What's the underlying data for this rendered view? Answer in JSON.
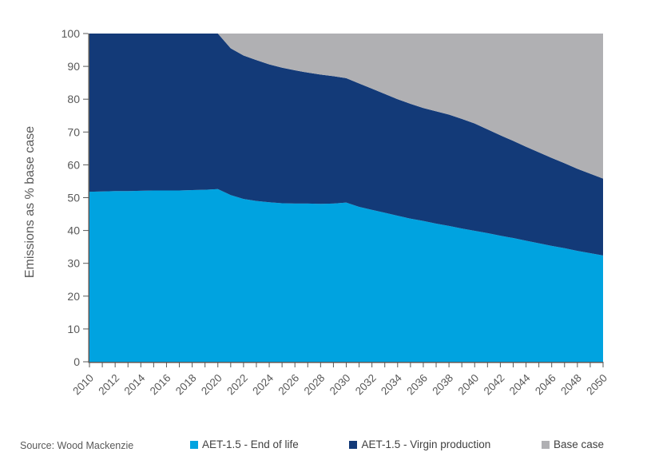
{
  "chart": {
    "source": "Source: Wood Mackenzie"
  },
  "chart_data": {
    "type": "area",
    "stacked": true,
    "title": "",
    "xlabel": "",
    "ylabel": "Emissions as % base case",
    "xlim": [
      2010,
      2050
    ],
    "ylim": [
      0,
      100
    ],
    "grid": false,
    "legend_position": "bottom",
    "background_color": "#FFFFFF",
    "axis_color": "#595959",
    "x": [
      2010,
      2011,
      2012,
      2013,
      2014,
      2015,
      2016,
      2017,
      2018,
      2019,
      2020,
      2021,
      2022,
      2023,
      2024,
      2025,
      2026,
      2027,
      2028,
      2029,
      2030,
      2031,
      2032,
      2033,
      2034,
      2035,
      2036,
      2037,
      2038,
      2039,
      2040,
      2041,
      2042,
      2043,
      2044,
      2045,
      2046,
      2047,
      2048,
      2049,
      2050
    ],
    "x_tick_step_labels": 2,
    "y_ticks": [
      0,
      10,
      20,
      30,
      40,
      50,
      60,
      70,
      80,
      90,
      100
    ],
    "series": [
      {
        "id": "end-of-life",
        "name": "AET-1.5 - End of life",
        "color": "#00A3E0",
        "values": [
          51.8,
          51.9,
          52.0,
          52.0,
          52.1,
          52.2,
          52.2,
          52.2,
          52.3,
          52.4,
          52.6,
          50.8,
          49.6,
          49.0,
          48.6,
          48.3,
          48.2,
          48.2,
          48.1,
          48.2,
          48.5,
          47.2,
          46.3,
          45.4,
          44.5,
          43.6,
          42.9,
          42.1,
          41.4,
          40.6,
          39.9,
          39.2,
          38.4,
          37.7,
          36.9,
          36.1,
          35.3,
          34.6,
          33.8,
          33.1,
          32.4
        ]
      },
      {
        "id": "virgin-production",
        "name": "AET-1.5 - Virgin production",
        "color": "#133A78",
        "values": [
          48.2,
          48.1,
          48.0,
          48.0,
          47.9,
          47.8,
          47.8,
          47.8,
          47.7,
          47.6,
          47.4,
          44.7,
          43.7,
          42.9,
          42.0,
          41.3,
          40.6,
          39.9,
          39.4,
          38.8,
          37.9,
          37.6,
          36.9,
          36.2,
          35.5,
          35.0,
          34.4,
          34.2,
          33.9,
          33.4,
          32.7,
          31.6,
          30.6,
          29.6,
          28.6,
          27.7,
          26.8,
          25.9,
          25.0,
          24.2,
          23.4
        ]
      },
      {
        "id": "base-case",
        "name": "Base case",
        "color": "#B0B0B3",
        "values": [
          0,
          0,
          0,
          0,
          0,
          0,
          0,
          0,
          0,
          0,
          0,
          4.5,
          6.7,
          8.1,
          9.4,
          10.4,
          11.2,
          11.9,
          12.5,
          13.0,
          13.6,
          15.2,
          16.8,
          18.4,
          20.0,
          21.4,
          22.7,
          23.7,
          24.7,
          26.0,
          27.4,
          29.2,
          31.0,
          32.7,
          34.5,
          36.2,
          37.9,
          39.5,
          41.2,
          42.7,
          44.2
        ]
      }
    ]
  }
}
